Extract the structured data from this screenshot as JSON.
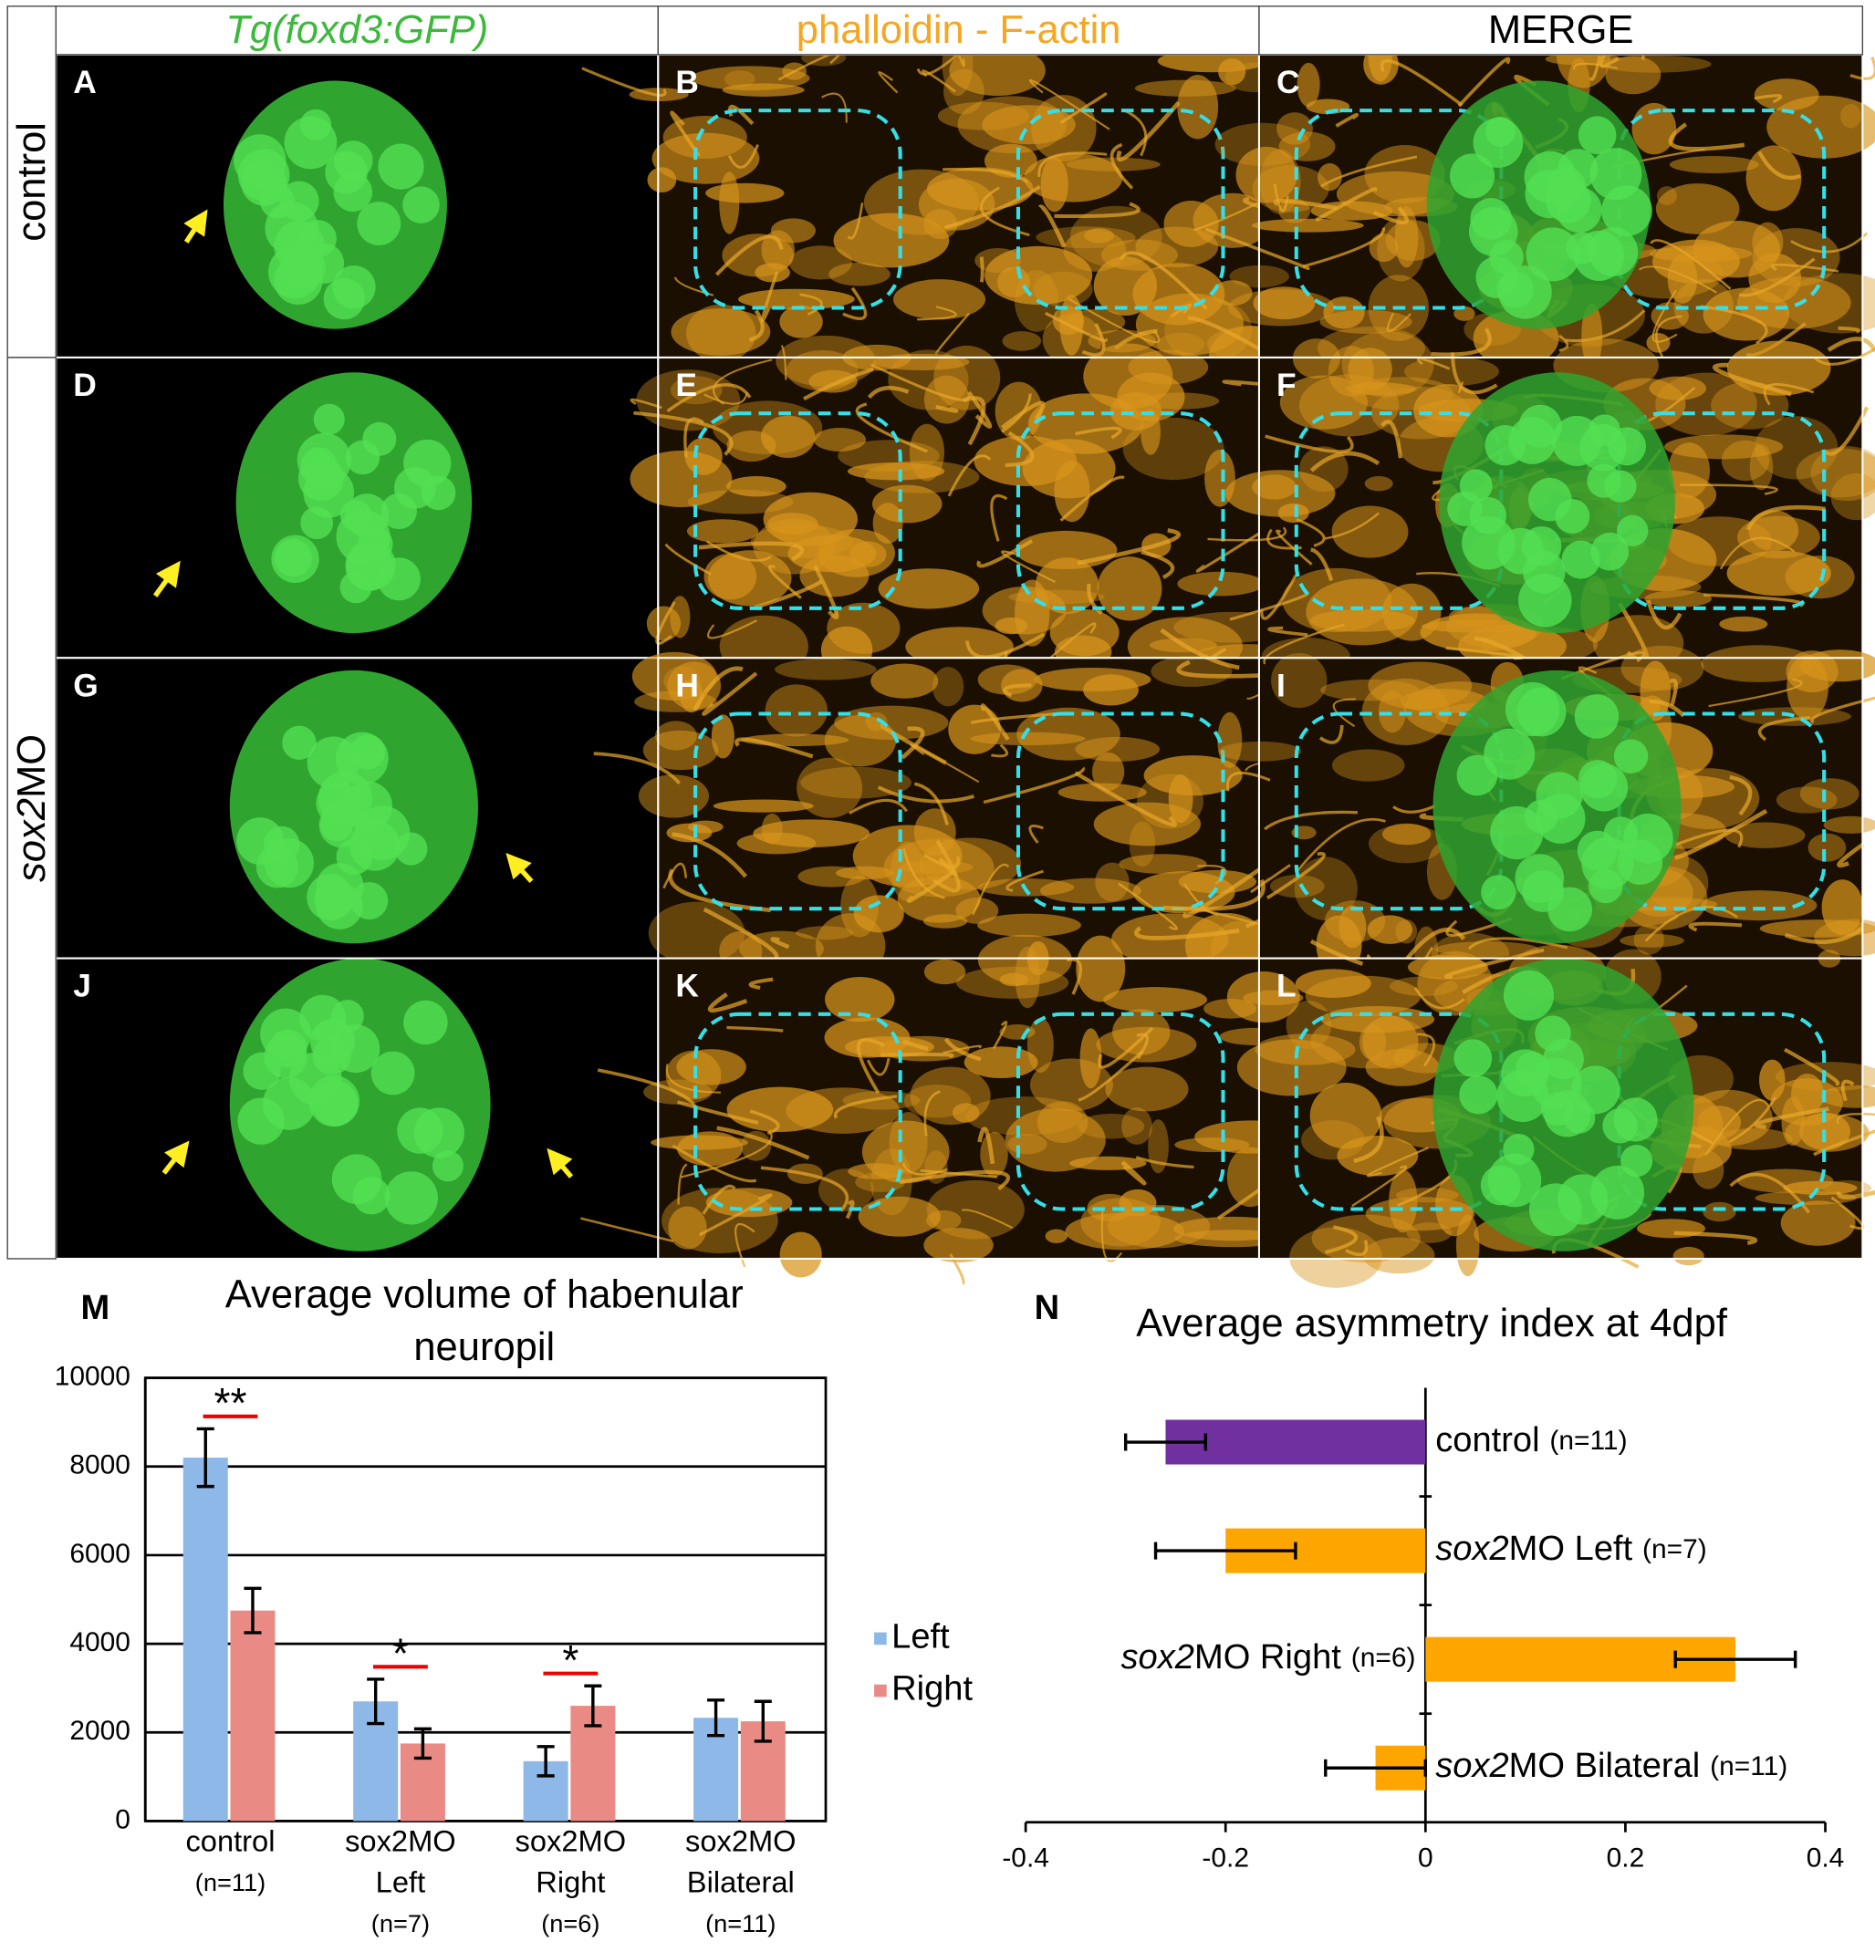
{
  "figure": {
    "columns": [
      "Tg(foxd3:GFP)",
      "phalloidin - F-actin",
      "MERGE"
    ],
    "column_colors": [
      "#3cb83c",
      "#f5a623",
      "#000000"
    ],
    "rows": [
      [
        "control"
      ],
      [
        "sox2",
        "MO"
      ]
    ],
    "panels": [
      "A",
      "B",
      "C",
      "D",
      "E",
      "F",
      "G",
      "H",
      "I",
      "J",
      "K",
      "L"
    ]
  },
  "chart_data": [
    {
      "type": "bar",
      "panel": "M",
      "title": [
        "Average volume of habenular",
        "neuropil"
      ],
      "categories": [
        [
          "control",
          "(n=11)"
        ],
        [
          "sox2MO",
          "Left",
          "(n=7)"
        ],
        [
          "sox2MO",
          "Right",
          "(n=6)"
        ],
        [
          "sox2MO",
          "Bilateral",
          "(n=11)"
        ]
      ],
      "series": [
        {
          "name": "Left",
          "color": "#8db8e8",
          "values": [
            8200,
            2700,
            1350,
            2330
          ],
          "errors": [
            650,
            500,
            330,
            400
          ]
        },
        {
          "name": "Right",
          "color": "#ea8a84",
          "values": [
            4750,
            1750,
            2600,
            2250
          ],
          "errors": [
            500,
            330,
            450,
            450
          ]
        }
      ],
      "significance": [
        "**",
        "*",
        "*",
        null
      ],
      "ylim": [
        0,
        10000
      ],
      "yticks": [
        0,
        2000,
        4000,
        6000,
        8000,
        10000
      ],
      "grid": true,
      "legend": "right"
    },
    {
      "type": "hbar",
      "panel": "N",
      "title": "Average asymmetry index at 4dpf",
      "categories": [
        [
          "control"
        ],
        [
          "sox2",
          "MO Left"
        ],
        [
          "sox2",
          "MO Right"
        ],
        [
          "sox2",
          "MO Bilateral"
        ]
      ],
      "n_labels": [
        "(n=11)",
        "(n=7)",
        "(n=6)",
        "(n=11)"
      ],
      "values": [
        -0.26,
        -0.2,
        0.31,
        -0.05
      ],
      "errors": [
        0.04,
        0.07,
        0.06,
        0.05
      ],
      "colors": [
        "#7030a0",
        "#ffa500",
        "#ffa500",
        "#ffa500"
      ],
      "xlim": [
        -0.4,
        0.4
      ],
      "xticks": [
        -0.4,
        -0.2,
        0,
        0.2,
        0.4
      ]
    }
  ]
}
